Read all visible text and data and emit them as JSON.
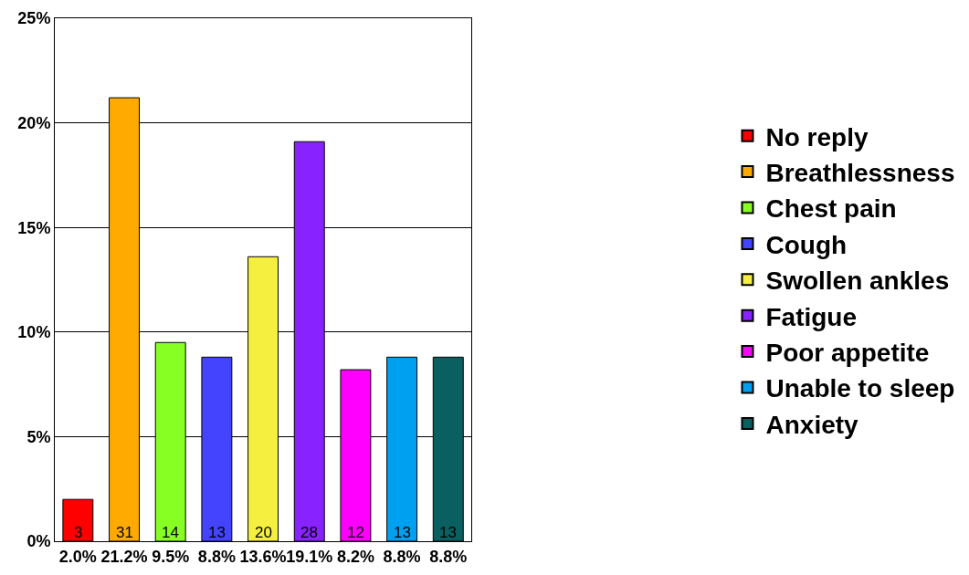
{
  "chart_data": {
    "type": "bar",
    "categories": [
      "2.0%",
      "21.2%",
      "9.5%",
      "8.8%",
      "13.6%",
      "19.1%",
      "8.2%",
      "8.8%",
      "8.8%"
    ],
    "series": [
      {
        "name": "No reply",
        "color": "#ff0000",
        "values": [
          2.0,
          null,
          null,
          null,
          null,
          null,
          null,
          null,
          null
        ]
      },
      {
        "name": "Breathlessness",
        "color": "#ffaa00",
        "values": [
          null,
          21.2,
          null,
          null,
          null,
          null,
          null,
          null,
          null
        ]
      },
      {
        "name": "Chest pain",
        "color": "#88ff22",
        "values": [
          null,
          null,
          9.5,
          null,
          null,
          null,
          null,
          null,
          null
        ]
      },
      {
        "name": "Cough",
        "color": "#4444ff",
        "values": [
          null,
          null,
          null,
          8.8,
          null,
          null,
          null,
          null,
          null
        ]
      },
      {
        "name": "Swollen ankles",
        "color": "#f5ef40",
        "values": [
          null,
          null,
          null,
          null,
          13.6,
          null,
          null,
          null,
          null
        ]
      },
      {
        "name": "Fatigue",
        "color": "#8822ff",
        "values": [
          null,
          null,
          null,
          null,
          null,
          19.1,
          null,
          null,
          null
        ]
      },
      {
        "name": "Poor appetite",
        "color": "#ff00ff",
        "values": [
          null,
          null,
          null,
          null,
          null,
          null,
          8.2,
          null,
          null
        ]
      },
      {
        "name": "Unable to sleep",
        "color": "#00a0f0",
        "values": [
          null,
          null,
          null,
          null,
          null,
          null,
          null,
          8.8,
          null
        ]
      },
      {
        "name": "Anxiety",
        "color": "#0a6060",
        "values": [
          null,
          null,
          null,
          null,
          null,
          null,
          null,
          null,
          8.8
        ]
      }
    ],
    "annotations": [
      "3",
      "31",
      "14",
      "13",
      "20",
      "28",
      "12",
      "13",
      "13"
    ],
    "ylim": [
      0,
      25
    ],
    "yticks": [
      {
        "value": 0,
        "label": "0%"
      },
      {
        "value": 5,
        "label": "5%"
      },
      {
        "value": 10,
        "label": "10%"
      },
      {
        "value": 15,
        "label": "15%"
      },
      {
        "value": 20,
        "label": "20%"
      },
      {
        "value": 25,
        "label": "25%"
      }
    ],
    "grid": "y",
    "legend": "right"
  }
}
